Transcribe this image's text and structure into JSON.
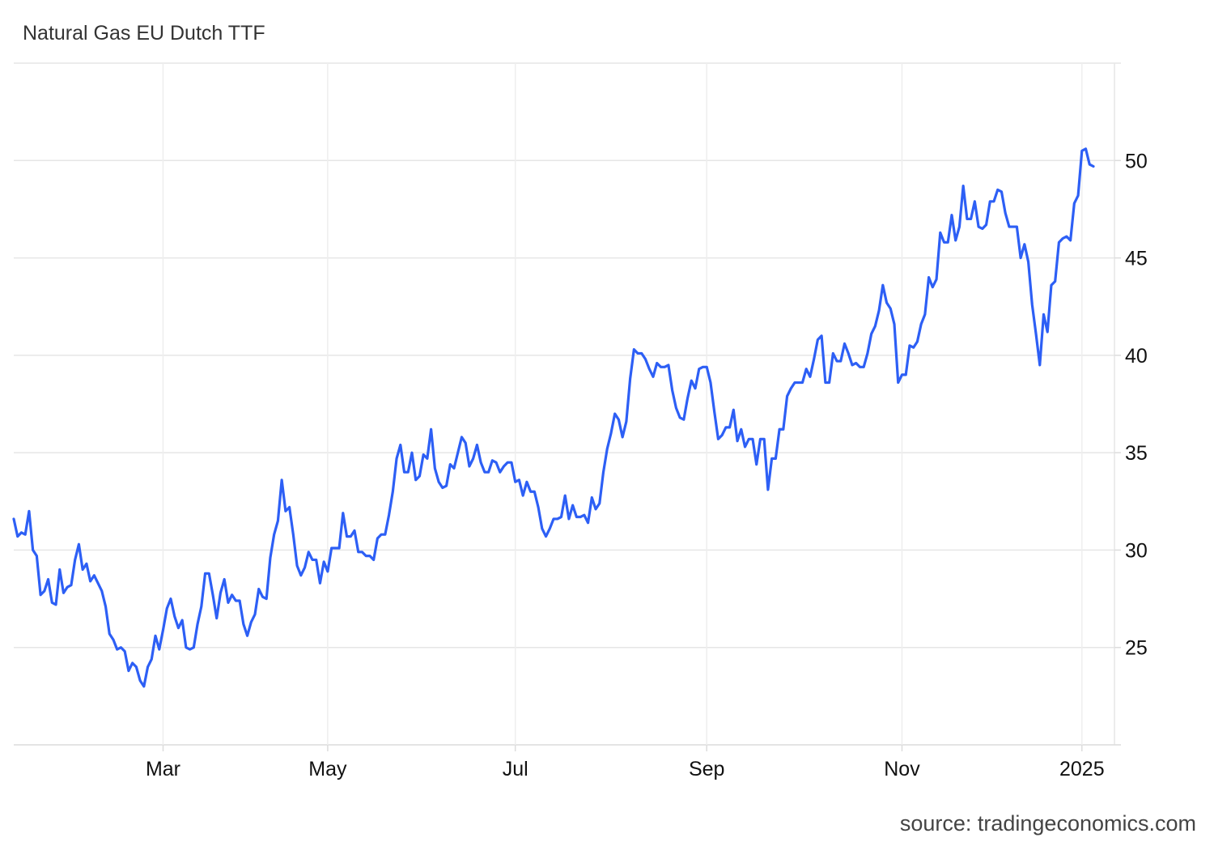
{
  "chart_data": {
    "type": "line",
    "title": "Natural Gas EU Dutch TTF",
    "source": "source: tradingeconomics.com",
    "color": "#2d5ff5",
    "grid": true,
    "ylim": [
      20,
      55
    ],
    "yticks": [
      25,
      30,
      35,
      40,
      45,
      50
    ],
    "categories": [
      null,
      null,
      null,
      null,
      null,
      null,
      null,
      null,
      null,
      null,
      null,
      null,
      null,
      null,
      null,
      null,
      null,
      null,
      null,
      null,
      null,
      null,
      null,
      null,
      null,
      null,
      null,
      null,
      null,
      null,
      null,
      null,
      null,
      null,
      null,
      null,
      null,
      null,
      null,
      "Mar",
      null,
      null,
      null,
      null,
      null,
      null,
      null,
      null,
      null,
      null,
      null,
      null,
      null,
      null,
      null,
      null,
      null,
      null,
      null,
      null,
      null,
      null,
      null,
      null,
      null,
      null,
      null,
      null,
      null,
      null,
      null,
      null,
      null,
      null,
      null,
      null,
      null,
      null,
      null,
      null,
      null,
      null,
      "May",
      null,
      null,
      null,
      null,
      null,
      null,
      null,
      null,
      null,
      null,
      null,
      null,
      null,
      null,
      null,
      null,
      null,
      null,
      null,
      null,
      null,
      null,
      null,
      null,
      null,
      null,
      null,
      null,
      null,
      null,
      null,
      null,
      null,
      null,
      null,
      null,
      null,
      null,
      null,
      null,
      null,
      null,
      null,
      null,
      null,
      null,
      null,
      null,
      "Jul",
      null,
      null,
      null,
      null,
      null,
      null,
      null,
      null,
      null,
      null,
      null,
      null,
      null,
      null,
      null,
      null,
      null,
      null,
      null,
      null,
      null,
      null,
      null,
      null,
      null,
      null,
      null,
      null,
      null,
      null,
      null,
      null,
      null,
      null,
      null,
      null,
      null,
      null,
      null,
      null,
      null,
      null,
      null,
      null,
      null,
      null,
      null,
      null,
      null,
      "Sep",
      null,
      null,
      null,
      null,
      null,
      null,
      null,
      null,
      null,
      null,
      null,
      null,
      null,
      null,
      null,
      null,
      null,
      null,
      null,
      null,
      null,
      null,
      null,
      null,
      null,
      null,
      null,
      null,
      null,
      null,
      null,
      null,
      null,
      null,
      null,
      null,
      null,
      null,
      null,
      null,
      null,
      null,
      null,
      null,
      null,
      null,
      null,
      null,
      null,
      null,
      "Nov",
      null,
      null,
      null,
      null,
      null,
      null,
      null,
      null,
      null,
      null,
      null,
      null,
      null,
      null,
      null,
      null,
      null,
      null,
      null,
      null,
      null,
      null,
      null,
      null,
      null,
      null,
      null,
      null,
      null,
      null,
      null,
      null,
      null,
      null,
      null,
      null,
      null,
      null,
      null,
      null,
      null,
      null,
      null,
      null,
      null,
      null,
      "2025",
      null,
      null,
      null
    ],
    "values": [
      31.6,
      30.7,
      30.9,
      30.8,
      32.0,
      30.0,
      29.7,
      27.7,
      27.9,
      28.5,
      27.3,
      27.2,
      29.0,
      27.8,
      28.1,
      28.2,
      29.5,
      30.3,
      29.0,
      29.3,
      28.4,
      28.7,
      28.3,
      27.9,
      27.1,
      25.7,
      25.4,
      24.9,
      25.0,
      24.8,
      23.8,
      24.2,
      24.0,
      23.3,
      23.0,
      24.0,
      24.4,
      25.6,
      24.9,
      25.9,
      27.0,
      27.5,
      26.6,
      26.0,
      26.4,
      25.0,
      24.9,
      25.0,
      26.2,
      27.1,
      28.8,
      28.8,
      27.7,
      26.5,
      27.8,
      28.5,
      27.3,
      27.7,
      27.4,
      27.4,
      26.2,
      25.6,
      26.3,
      26.7,
      28.0,
      27.6,
      27.5,
      29.6,
      30.8,
      31.5,
      33.6,
      32.0,
      32.2,
      30.8,
      29.2,
      28.7,
      29.1,
      29.9,
      29.5,
      29.5,
      28.3,
      29.4,
      28.9,
      30.1,
      30.1,
      30.1,
      31.9,
      30.7,
      30.7,
      31.0,
      29.9,
      29.9,
      29.7,
      29.7,
      29.5,
      30.6,
      30.8,
      30.8,
      31.8,
      33.0,
      34.7,
      35.4,
      34.0,
      34.0,
      35.0,
      33.6,
      33.8,
      34.9,
      34.7,
      36.2,
      34.2,
      33.5,
      33.2,
      33.3,
      34.4,
      34.2,
      35.0,
      35.8,
      35.5,
      34.3,
      34.7,
      35.4,
      34.5,
      34.0,
      34.0,
      34.6,
      34.5,
      34.0,
      34.3,
      34.5,
      34.5,
      33.5,
      33.6,
      32.8,
      33.5,
      33.0,
      33.0,
      32.2,
      31.1,
      30.7,
      31.1,
      31.6,
      31.6,
      31.7,
      32.8,
      31.6,
      32.3,
      31.7,
      31.7,
      31.8,
      31.4,
      32.7,
      32.1,
      32.4,
      34.0,
      35.2,
      36.0,
      37.0,
      36.7,
      35.8,
      36.6,
      38.8,
      40.3,
      40.1,
      40.1,
      39.8,
      39.3,
      38.9,
      39.6,
      39.4,
      39.4,
      39.5,
      38.2,
      37.3,
      36.8,
      36.7,
      37.8,
      38.7,
      38.3,
      39.3,
      39.4,
      39.4,
      38.6,
      37.1,
      35.7,
      35.9,
      36.3,
      36.3,
      37.2,
      35.6,
      36.2,
      35.3,
      35.7,
      35.7,
      34.4,
      35.7,
      35.7,
      33.1,
      34.7,
      34.7,
      36.2,
      36.2,
      37.9,
      38.3,
      38.6,
      38.6,
      38.6,
      39.3,
      38.9,
      39.8,
      40.8,
      41.0,
      38.6,
      38.6,
      40.1,
      39.7,
      39.7,
      40.6,
      40.1,
      39.5,
      39.6,
      39.4,
      39.4,
      40.1,
      41.1,
      41.5,
      42.3,
      43.6,
      42.7,
      42.4,
      41.6,
      38.6,
      39.0,
      39.0,
      40.5,
      40.4,
      40.7,
      41.6,
      42.1,
      44.0,
      43.5,
      43.9,
      46.3,
      45.8,
      45.8,
      47.2,
      45.9,
      46.6,
      48.7,
      47.0,
      47.0,
      47.9,
      46.6,
      46.5,
      46.7,
      47.9,
      47.9,
      48.5,
      48.4,
      47.3,
      46.6,
      46.6,
      46.6,
      45.0,
      45.7,
      44.8,
      42.6,
      41.1,
      39.5,
      42.1,
      41.2,
      43.6,
      43.8,
      45.8,
      46.0,
      46.1,
      45.9,
      47.8,
      48.2,
      50.5,
      50.6,
      49.8,
      49.7
    ]
  }
}
